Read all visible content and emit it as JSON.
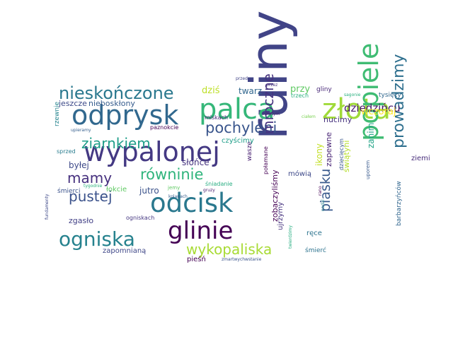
{
  "wordcloud": {
    "words": [
      {
        "text": "ruiny",
        "color": "#414487"
      },
      {
        "text": "palca",
        "color": "#35b779"
      },
      {
        "text": "złota",
        "color": "#a0da39"
      },
      {
        "text": "odprysk",
        "color": "#31688e"
      },
      {
        "text": "wypalonej",
        "color": "#443983"
      },
      {
        "text": "popiele",
        "color": "#3fbc73"
      },
      {
        "text": "odcisk",
        "color": "#2a788e"
      },
      {
        "text": "glinie",
        "color": "#440154"
      },
      {
        "text": "ogniska",
        "color": "#26828e"
      },
      {
        "text": "nieskończone",
        "color": "#2a788e"
      },
      {
        "text": "prowadzimy",
        "color": "#2e6f8e"
      },
      {
        "text": "pochyleni",
        "color": "#39558c"
      },
      {
        "text": "równinie",
        "color": "#2fb47c"
      },
      {
        "text": "ziarnkiem",
        "color": "#1f9e89"
      },
      {
        "text": "pustej",
        "color": "#3b528b"
      },
      {
        "text": "mamy",
        "color": "#46307e"
      },
      {
        "text": "wykopaliska",
        "color": "#a8db34"
      },
      {
        "text": "mroczne",
        "color": "#46337f"
      },
      {
        "text": "piasku",
        "color": "#38598c"
      },
      {
        "text": "dziedzińcu",
        "color": "#48186a"
      },
      {
        "text": "wczoraj",
        "color": "#fde725"
      },
      {
        "text": "dziś",
        "color": "#bddf26"
      },
      {
        "text": "twarz",
        "color": "#31678e"
      },
      {
        "text": "przy",
        "color": "#5ec962"
      },
      {
        "text": "gliny",
        "color": "#482878"
      },
      {
        "text": "tysięcy",
        "color": "#31688e"
      },
      {
        "text": "jeszcze",
        "color": "#3e4a89"
      },
      {
        "text": "nieboskłony",
        "color": "#365c8d"
      },
      {
        "text": "słońce",
        "color": "#46337f"
      },
      {
        "text": "czyścimy",
        "color": "#1f9e89"
      },
      {
        "text": "ikony",
        "color": "#c2df23"
      },
      {
        "text": "zanim",
        "color": "#20a386"
      },
      {
        "text": "ziemi",
        "color": "#472c7a"
      },
      {
        "text": "nucimy",
        "color": "#46327e"
      },
      {
        "text": "byłej",
        "color": "#3e4989"
      },
      {
        "text": "jutro",
        "color": "#3b528b"
      },
      {
        "text": "łokcie",
        "color": "#5ec962"
      },
      {
        "text": "mówią",
        "color": "#3e4989"
      },
      {
        "text": "zobaczyliśmy",
        "color": "#440154"
      },
      {
        "text": "zapewne",
        "color": "#482475"
      },
      {
        "text": "świątyni",
        "color": "#b5de2b"
      },
      {
        "text": "ujrzymy",
        "color": "#46337f"
      },
      {
        "text": "zgasło",
        "color": "#424086"
      },
      {
        "text": "ręce",
        "color": "#2c738e"
      },
      {
        "text": "pieśń",
        "color": "#440154"
      },
      {
        "text": "zapomnianą",
        "color": "#3f4788"
      },
      {
        "text": "śmierć",
        "color": "#2c728e"
      },
      {
        "text": "barbarzyńców",
        "color": "#31668e"
      },
      {
        "text": "rzewnie",
        "color": "#25848e"
      },
      {
        "text": "śmierci",
        "color": "#3b528b"
      },
      {
        "text": "ogniskach",
        "color": "#453781"
      },
      {
        "text": "miskach",
        "color": "#482677"
      },
      {
        "text": "paznokcie",
        "color": "#440154"
      },
      {
        "text": "upieramy",
        "color": "#355f8d"
      },
      {
        "text": "sprzed",
        "color": "#287c8e"
      },
      {
        "text": "trzech",
        "color": "#2ab07f"
      },
      {
        "text": "przed",
        "color": "#414487"
      },
      {
        "text": "przez",
        "color": "#46337f"
      },
      {
        "text": "świętym",
        "color": "#482878"
      },
      {
        "text": "sagonie",
        "color": "#2ab07f"
      },
      {
        "text": "jemy",
        "color": "#5ec962"
      },
      {
        "text": "śniadanie",
        "color": "#27ad81"
      },
      {
        "text": "gruzy",
        "color": "#481c6e"
      },
      {
        "text": "wasze",
        "color": "#482071"
      },
      {
        "text": "połamane",
        "color": "#440154"
      },
      {
        "text": "dziecięcym",
        "color": "#39568c"
      },
      {
        "text": "rano",
        "color": "#440154"
      },
      {
        "text": "uporem",
        "color": "#38598c"
      },
      {
        "text": "kolanach",
        "color": "#365d8d"
      },
      {
        "text": "tygodnie",
        "color": "#2db27d"
      },
      {
        "text": "fundamenty",
        "color": "#3e4989"
      },
      {
        "text": "nadal",
        "color": "#25838e"
      },
      {
        "text": "twierdzimy",
        "color": "#27ad81"
      },
      {
        "text": "zmartwychwstanie",
        "color": "#3a538b"
      },
      {
        "text": "ciałem",
        "color": "#7ad151"
      }
    ]
  }
}
